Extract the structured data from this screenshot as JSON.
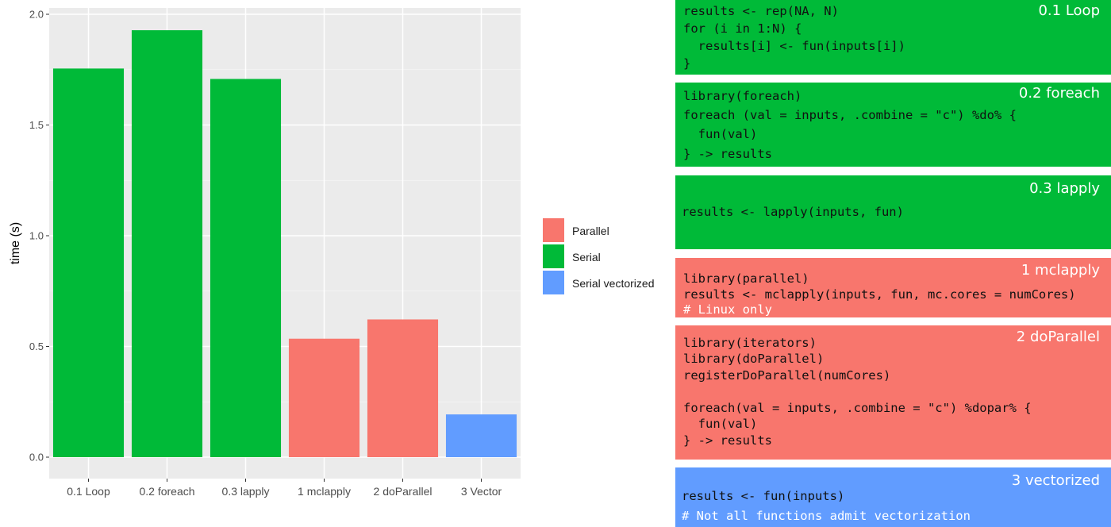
{
  "chart_data": {
    "type": "bar",
    "categories": [
      "0.1 Loop",
      "0.2 foreach",
      "0.3 lapply",
      "1 mclapply",
      "2 doParallel",
      "3 Vector"
    ],
    "values": [
      1.755,
      1.928,
      1.708,
      0.535,
      0.622,
      0.193
    ],
    "groups": [
      "Serial",
      "Serial",
      "Serial",
      "Parallel",
      "Parallel",
      "Serial vectorized"
    ],
    "xlabel": "",
    "ylabel": "time (s)",
    "ylim": [
      0,
      2.0
    ],
    "yticks": [
      0.0,
      0.5,
      1.0,
      1.5,
      2.0
    ],
    "ytick_labels": [
      "0.0",
      "0.5",
      "1.0",
      "1.5",
      "2.0"
    ],
    "grid": true,
    "legend": {
      "position": "right",
      "entries": [
        {
          "label": "Parallel",
          "color": "#F8766D"
        },
        {
          "label": "Serial",
          "color": "#00BA38"
        },
        {
          "label": "Serial vectorized",
          "color": "#619CFF"
        }
      ]
    }
  },
  "colors": {
    "panel_background": "#EBEBEB",
    "gridline": "#FFFFFF",
    "Parallel": "#F8766D",
    "Serial": "#00BA38",
    "Serial vectorized": "#619CFF"
  },
  "code_panels": [
    {
      "title": "0.1 Loop",
      "group": "Serial",
      "lines": [
        {
          "text": "results <- rep(NA, N)",
          "comment": false
        },
        {
          "text": "for (i in 1:N) {",
          "comment": false
        },
        {
          "text": "  results[i] <- fun(inputs[i])",
          "comment": false
        },
        {
          "text": "}",
          "comment": false
        }
      ]
    },
    {
      "title": "0.2 foreach",
      "group": "Serial",
      "lines": [
        {
          "text": "library(foreach)",
          "comment": false
        },
        {
          "text": "foreach (val = inputs, .combine = \"c\") %do% {",
          "comment": false
        },
        {
          "text": "  fun(val)",
          "comment": false
        },
        {
          "text": "} -> results",
          "comment": false
        }
      ]
    },
    {
      "title": "0.3 lapply",
      "group": "Serial",
      "lines": [
        {
          "text": "results <- lapply(inputs, fun)",
          "comment": false
        }
      ]
    },
    {
      "title": "1 mclapply",
      "group": "Parallel",
      "lines": [
        {
          "text": "library(parallel)",
          "comment": false
        },
        {
          "text": "results <- mclapply(inputs, fun, mc.cores = numCores)",
          "comment": false
        },
        {
          "text": "# Linux only",
          "comment": true
        }
      ]
    },
    {
      "title": "2 doParallel",
      "group": "Parallel",
      "lines": [
        {
          "text": "library(iterators)",
          "comment": false
        },
        {
          "text": "library(doParallel)",
          "comment": false
        },
        {
          "text": "registerDoParallel(numCores)",
          "comment": false
        },
        {
          "text": "",
          "comment": false
        },
        {
          "text": "foreach(val = inputs, .combine = \"c\") %dopar% {",
          "comment": false
        },
        {
          "text": "  fun(val)",
          "comment": false
        },
        {
          "text": "} -> results",
          "comment": false
        }
      ]
    },
    {
      "title": "3 vectorized",
      "group": "Serial vectorized",
      "lines": [
        {
          "text": "results <- fun(inputs)",
          "comment": false
        },
        {
          "text": "# Not all functions admit vectorization",
          "comment": true
        }
      ]
    }
  ]
}
